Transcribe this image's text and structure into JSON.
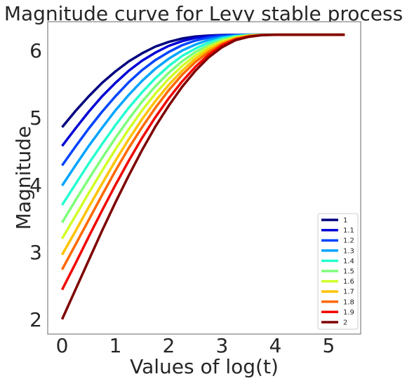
{
  "chart_data": {
    "type": "line",
    "title": "Magnitude curve for Levy stable process",
    "xlabel": "Values of log(t)",
    "ylabel": "Magnitude",
    "xlim": [
      -0.27,
      5.6
    ],
    "ylim": [
      1.78,
      6.43
    ],
    "xticks": [
      "0",
      "1",
      "2",
      "3",
      "4",
      "5"
    ],
    "yticks": [
      "2",
      "3",
      "4",
      "5",
      "6"
    ],
    "grid": false,
    "legend_position": "lower-right",
    "x": [
      0,
      0.25,
      0.5,
      0.75,
      1,
      1.25,
      1.5,
      1.75,
      2,
      2.25,
      2.5,
      2.75,
      3,
      3.25,
      3.5,
      3.75,
      4,
      4.5,
      5,
      5.3
    ],
    "series": [
      {
        "name": "1",
        "color": "#00007f",
        "values": [
          4.86,
          5.1,
          5.32,
          5.52,
          5.69,
          5.84,
          5.96,
          6.06,
          6.13,
          6.18,
          6.21,
          6.225,
          6.232,
          6.235,
          6.236,
          6.236,
          6.236,
          6.236,
          6.236,
          6.236
        ]
      },
      {
        "name": "1.1",
        "color": "#0000d6",
        "values": [
          4.58,
          4.84,
          5.09,
          5.32,
          5.52,
          5.7,
          5.85,
          5.97,
          6.07,
          6.14,
          6.19,
          6.215,
          6.228,
          6.234,
          6.236,
          6.236,
          6.236,
          6.236,
          6.236,
          6.236
        ]
      },
      {
        "name": "1.2",
        "color": "#0044ff",
        "values": [
          4.29,
          4.57,
          4.84,
          5.09,
          5.32,
          5.53,
          5.71,
          5.86,
          5.98,
          6.08,
          6.15,
          6.195,
          6.22,
          6.232,
          6.236,
          6.236,
          6.236,
          6.236,
          6.236,
          6.236
        ]
      },
      {
        "name": "1.3",
        "color": "#00a4ff",
        "values": [
          3.99,
          4.29,
          4.58,
          4.85,
          5.11,
          5.34,
          5.55,
          5.73,
          5.88,
          6.0,
          6.09,
          6.16,
          6.2,
          6.225,
          6.234,
          6.236,
          6.236,
          6.236,
          6.236,
          6.236
        ]
      },
      {
        "name": "1.4",
        "color": "#26ffd0",
        "values": [
          3.7,
          4.01,
          4.32,
          4.61,
          4.89,
          5.15,
          5.38,
          5.59,
          5.77,
          5.92,
          6.03,
          6.12,
          6.18,
          6.215,
          6.232,
          6.236,
          6.236,
          6.236,
          6.236,
          6.236
        ]
      },
      {
        "name": "1.5",
        "color": "#7dff7a",
        "values": [
          3.44,
          3.77,
          4.09,
          4.4,
          4.7,
          4.98,
          5.24,
          5.47,
          5.67,
          5.84,
          5.98,
          6.08,
          6.16,
          6.205,
          6.228,
          6.236,
          6.236,
          6.236,
          6.236,
          6.236
        ]
      },
      {
        "name": "1.6",
        "color": "#d0ff26",
        "values": [
          3.2,
          3.54,
          3.88,
          4.21,
          4.53,
          4.83,
          5.11,
          5.36,
          5.58,
          5.77,
          5.93,
          6.05,
          6.14,
          6.195,
          6.225,
          6.235,
          6.236,
          6.236,
          6.236,
          6.236
        ]
      },
      {
        "name": "1.7",
        "color": "#ffc300",
        "values": [
          2.96,
          3.31,
          3.67,
          4.02,
          4.36,
          4.68,
          4.98,
          5.25,
          5.49,
          5.7,
          5.88,
          6.02,
          6.12,
          6.185,
          6.22,
          6.234,
          6.236,
          6.236,
          6.236,
          6.236
        ]
      },
      {
        "name": "1.8",
        "color": "#ff6800",
        "values": [
          2.74,
          3.11,
          3.48,
          3.85,
          4.21,
          4.55,
          4.86,
          5.15,
          5.41,
          5.64,
          5.83,
          5.98,
          6.1,
          6.175,
          6.215,
          6.233,
          6.236,
          6.236,
          6.236,
          6.236
        ]
      },
      {
        "name": "1.9",
        "color": "#f10800",
        "values": [
          2.44,
          2.83,
          3.23,
          3.62,
          4.0,
          4.36,
          4.7,
          5.01,
          5.29,
          5.54,
          5.76,
          5.94,
          6.08,
          6.165,
          6.21,
          6.232,
          6.236,
          6.236,
          6.236,
          6.236
        ]
      },
      {
        "name": "2",
        "color": "#7f0000",
        "values": [
          2.0,
          2.44,
          2.88,
          3.32,
          3.74,
          4.14,
          4.52,
          4.87,
          5.18,
          5.46,
          5.7,
          5.9,
          6.05,
          6.155,
          6.205,
          6.23,
          6.236,
          6.236,
          6.236,
          6.236
        ]
      }
    ]
  }
}
